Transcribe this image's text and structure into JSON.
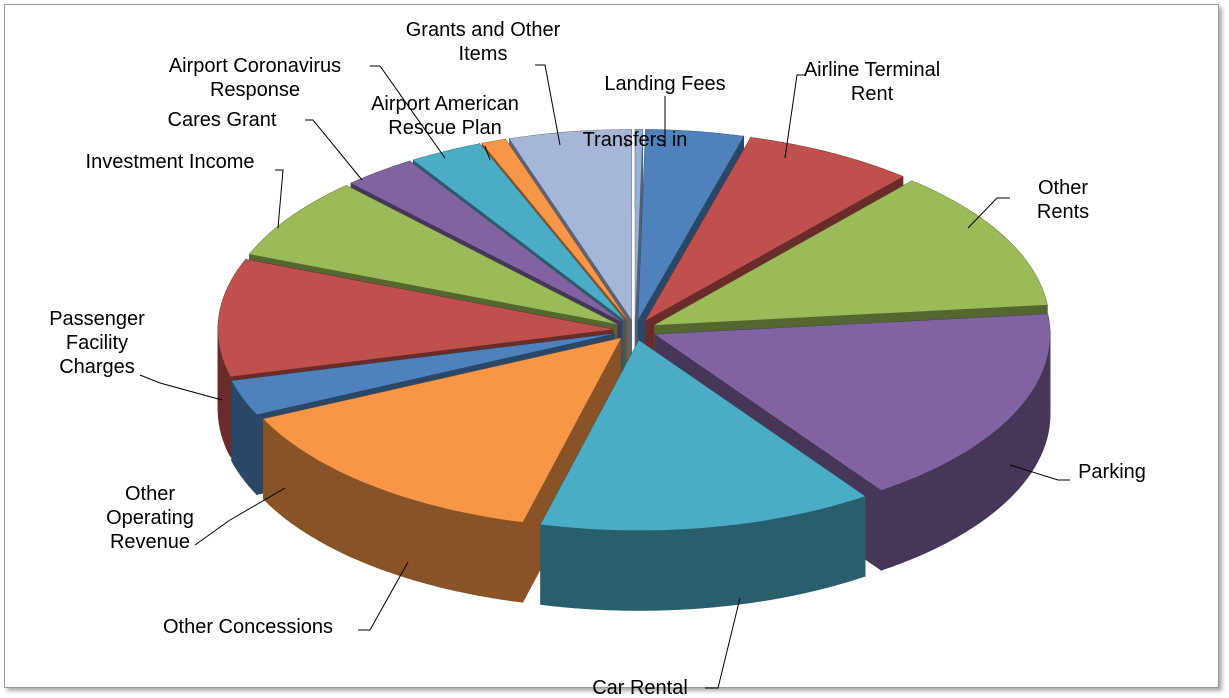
{
  "chart_data": {
    "type": "pie3d",
    "categories": [
      "Transfers in",
      "Landing Fees",
      "Airline Terminal Rent",
      "Other Rents",
      "Parking",
      "Car Rental",
      "Other Concessions",
      "Other Operating Revenue",
      "Passenger Facility Charges",
      "Investment Income",
      "Cares Grant",
      "Airport Coronavirus Response",
      "Airport American Rescue Plan",
      "Grants and Other Items"
    ],
    "values": [
      0.3,
      4,
      7,
      12,
      17,
      13.7,
      14,
      3,
      10,
      7,
      3,
      3,
      1,
      5
    ],
    "colors": [
      "#95B3D7",
      "#4F81BD",
      "#C0504D",
      "#9BBB59",
      "#8064A2",
      "#4BACC6",
      "#F79646",
      "#4F81BD",
      "#C0504D",
      "#9BBB59",
      "#8064A2",
      "#4BACC6",
      "#F79646",
      "#A5B6D8"
    ]
  }
}
